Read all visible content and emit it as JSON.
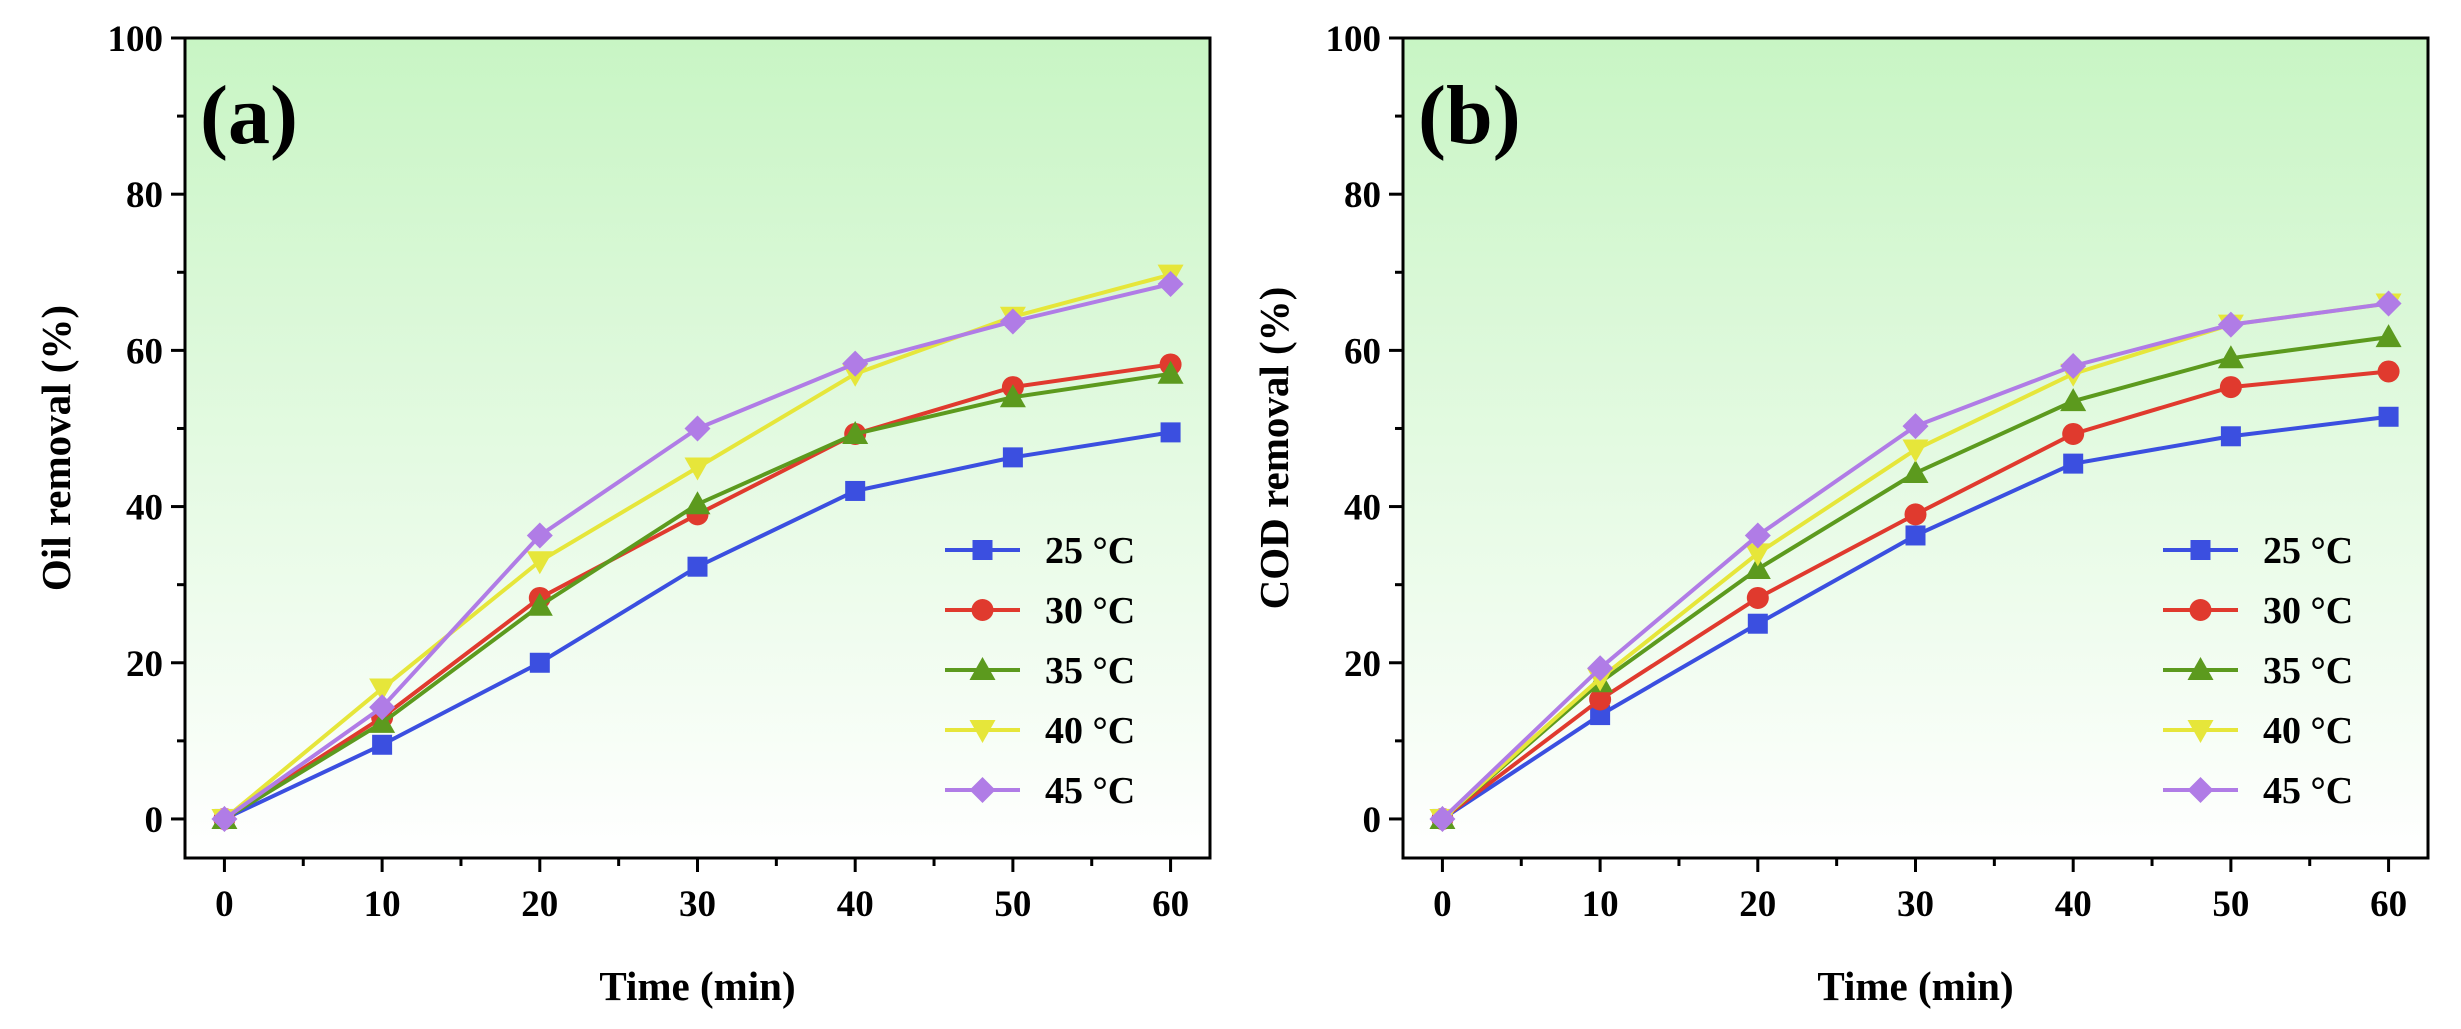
{
  "colors": {
    "25C": "#3b4fe0",
    "30C": "#e03a2e",
    "35C": "#5c9a1e",
    "40C": "#e6e63a",
    "45C": "#b07ce6",
    "bg_top": "#c8f5c4",
    "bg_bottom": "#ffffff"
  },
  "chart_data": [
    {
      "type": "line",
      "panel_label": "(a)",
      "xlabel": "Time (min)",
      "ylabel": "Oil removal (%)",
      "xlim": [
        -2.5,
        62.5
      ],
      "ylim": [
        -5,
        100
      ],
      "xticks": [
        0,
        10,
        20,
        30,
        40,
        50,
        60
      ],
      "yticks": [
        0,
        20,
        40,
        60,
        80,
        100
      ],
      "x": [
        0,
        10,
        20,
        30,
        40,
        50,
        60
      ],
      "legend_position": "center-right",
      "series": [
        {
          "name": "25 °C",
          "marker": "square",
          "color_key": "25C",
          "values": [
            0,
            9.5,
            20,
            32.3,
            42,
            46.3,
            49.5
          ]
        },
        {
          "name": "30 °C",
          "marker": "circle",
          "color_key": "30C",
          "values": [
            0,
            13,
            28.3,
            39,
            49.3,
            55.3,
            58.2
          ]
        },
        {
          "name": "35 °C",
          "marker": "triangle-up",
          "color_key": "35C",
          "values": [
            0,
            12.3,
            27.3,
            40.3,
            49.3,
            54,
            57
          ]
        },
        {
          "name": "40 °C",
          "marker": "triangle-down",
          "color_key": "40C",
          "values": [
            0,
            16.7,
            33,
            45,
            57,
            64.3,
            69.7
          ]
        },
        {
          "name": "45 °C",
          "marker": "diamond",
          "color_key": "45C",
          "values": [
            0,
            14.3,
            36.3,
            50,
            58.3,
            63.7,
            68.5
          ]
        }
      ]
    },
    {
      "type": "line",
      "panel_label": "(b)",
      "xlabel": "Time (min)",
      "ylabel": "COD removal (%)",
      "xlim": [
        -2.5,
        62.5
      ],
      "ylim": [
        -5,
        100
      ],
      "xticks": [
        0,
        10,
        20,
        30,
        40,
        50,
        60
      ],
      "yticks": [
        0,
        20,
        40,
        60,
        80,
        100
      ],
      "x": [
        0,
        10,
        20,
        30,
        40,
        50,
        60
      ],
      "legend_position": "center-right",
      "series": [
        {
          "name": "25 °C",
          "marker": "square",
          "color_key": "25C",
          "values": [
            0,
            13.3,
            25,
            36.3,
            45.5,
            49,
            51.5
          ]
        },
        {
          "name": "30 °C",
          "marker": "circle",
          "color_key": "30C",
          "values": [
            0,
            15.3,
            28.3,
            39,
            49.3,
            55.3,
            57.3
          ]
        },
        {
          "name": "35 °C",
          "marker": "triangle-up",
          "color_key": "35C",
          "values": [
            0,
            17.5,
            32,
            44.3,
            53.5,
            59,
            61.7
          ]
        },
        {
          "name": "40 °C",
          "marker": "triangle-down",
          "color_key": "40C",
          "values": [
            0,
            18,
            34,
            47.3,
            57,
            63.3,
            66
          ]
        },
        {
          "name": "45 °C",
          "marker": "diamond",
          "color_key": "45C",
          "values": [
            0,
            19.3,
            36.3,
            50.3,
            58,
            63.3,
            66
          ]
        }
      ]
    }
  ]
}
